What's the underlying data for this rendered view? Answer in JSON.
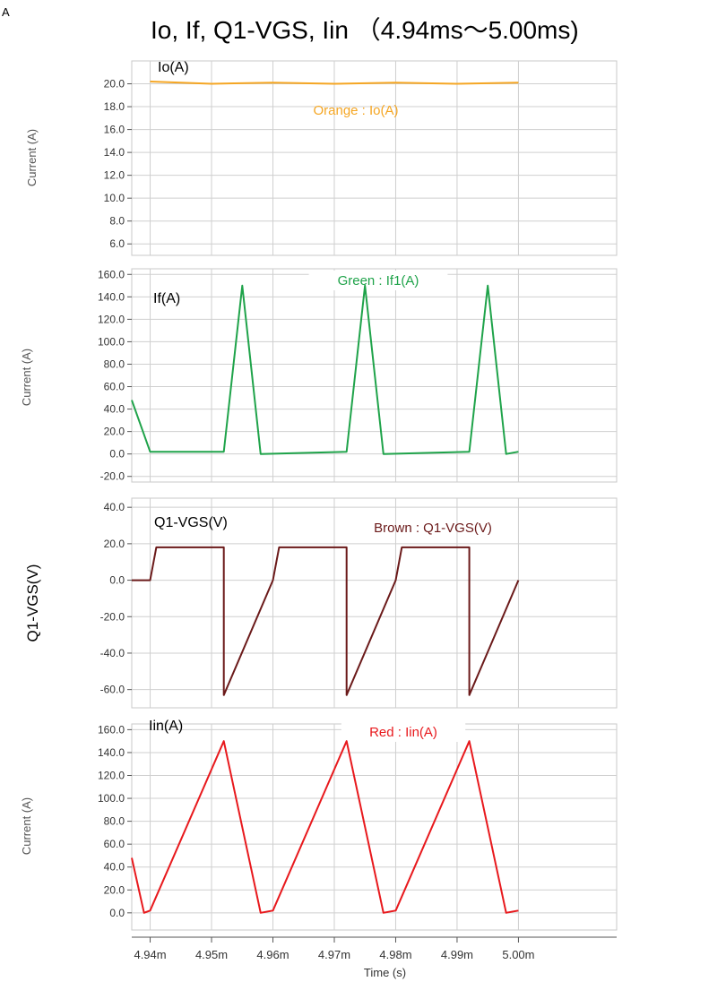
{
  "corner_label": "A",
  "title": "Io, If, Q1-VGS, Iin （4.94ms～5.00ms)",
  "x_axis": {
    "label": "Time (s)",
    "ticks": [
      {
        "value": 0.00494,
        "label": "4.94m"
      },
      {
        "value": 0.00495,
        "label": "4.95m"
      },
      {
        "value": 0.00496,
        "label": "4.96m"
      },
      {
        "value": 0.00497,
        "label": "4.97m"
      },
      {
        "value": 0.00498,
        "label": "4.98m"
      },
      {
        "value": 0.00499,
        "label": "4.99m"
      },
      {
        "value": 0.005,
        "label": "5.00m"
      }
    ],
    "range": [
      0.004937,
      0.005016
    ]
  },
  "chart_data": [
    {
      "type": "line",
      "trace_label": "Io(A)",
      "legend": "Orange : Io(A)",
      "color": "#f5a623",
      "ylabel": "Current (A)",
      "ylim": [
        5.0,
        22.0
      ],
      "yticks": [
        "20.0",
        "18.0",
        "16.0",
        "14.0",
        "12.0",
        "10.0",
        "8.0",
        "6.0"
      ],
      "grid": true,
      "x": [
        0.00494,
        0.00495,
        0.00496,
        0.00497,
        0.00498,
        0.00499,
        0.005
      ],
      "y": [
        20.2,
        20.0,
        20.1,
        20.0,
        20.1,
        20.0,
        20.1
      ]
    },
    {
      "type": "line",
      "trace_label": "If(A)",
      "legend": "Green : If1(A)",
      "color": "#1fa34a",
      "ylabel": "Current (A)",
      "ylim": [
        -25.0,
        165.0
      ],
      "yticks": [
        "160.0",
        "140.0",
        "120.0",
        "100.0",
        "80.0",
        "60.0",
        "40.0",
        "20.0",
        "0.0",
        "-20.0"
      ],
      "grid": true,
      "x": [
        0.004937,
        0.00494,
        0.004952,
        0.004955,
        0.004958,
        0.004972,
        0.004975,
        0.004978,
        0.004992,
        0.004995,
        0.004998,
        0.005
      ],
      "y": [
        48,
        2,
        2,
        150,
        0,
        2,
        150,
        0,
        2,
        150,
        0,
        2
      ]
    },
    {
      "type": "line",
      "trace_label": "Q1-VGS(V)",
      "legend": "Brown : Q1-VGS(V)",
      "color": "#6b1a1a",
      "ylabel": "Q1-VGS(V)",
      "ylim": [
        -70.0,
        45.0
      ],
      "yticks": [
        "40.0",
        "20.0",
        "0.0",
        "-20.0",
        "-40.0",
        "-60.0"
      ],
      "grid": true,
      "x": [
        0.004937,
        0.00494,
        0.004941,
        0.004952,
        0.004952,
        0.00496,
        0.004961,
        0.004972,
        0.004972,
        0.00498,
        0.004981,
        0.004992,
        0.004992,
        0.005
      ],
      "y": [
        0,
        0,
        18,
        18,
        -63,
        0,
        18,
        18,
        -63,
        0,
        18,
        18,
        -63,
        0
      ]
    },
    {
      "type": "line",
      "trace_label": "Iin(A)",
      "legend": "Red : Iin(A)",
      "color": "#e8191d",
      "ylabel": "Current (A)",
      "ylim": [
        -15.0,
        165.0
      ],
      "yticks": [
        "160.0",
        "140.0",
        "120.0",
        "100.0",
        "80.0",
        "60.0",
        "40.0",
        "20.0",
        "0.0"
      ],
      "grid": true,
      "x": [
        0.004937,
        0.004939,
        0.00494,
        0.004952,
        0.004958,
        0.00496,
        0.004972,
        0.004978,
        0.00498,
        0.004992,
        0.004998,
        0.005
      ],
      "y": [
        48,
        0,
        2,
        150,
        0,
        2,
        150,
        0,
        2,
        150,
        0,
        2
      ]
    }
  ]
}
